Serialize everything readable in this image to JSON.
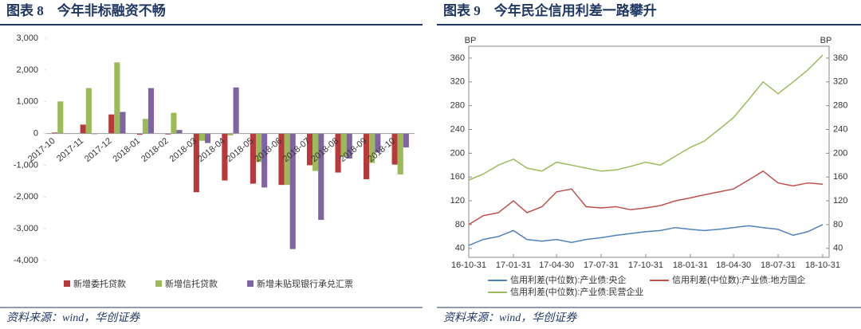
{
  "chart_data": [
    {
      "type": "bar",
      "title": "图表 8　今年非标融资不畅",
      "source": "资料来源：wind，华创证券",
      "categories": [
        "2017-10",
        "2017-11",
        "2017-12",
        "2018-01",
        "2018-02",
        "2018-03",
        "2018-04",
        "2018-05",
        "2018-06",
        "2018-07",
        "2018-08",
        "2018-09",
        "2018-10"
      ],
      "series": [
        {
          "name": "新增委托贷款",
          "color": "#b8393b",
          "values": [
            30,
            280,
            600,
            -40,
            -30,
            -1850,
            -1480,
            -1580,
            -1620,
            -1000,
            -1230,
            -1440,
            -980
          ]
        },
        {
          "name": "新增信托贷款",
          "color": "#9bbb59",
          "values": [
            1010,
            1430,
            2240,
            460,
            650,
            -230,
            -60,
            -900,
            -1620,
            -1180,
            -730,
            -930,
            -1290
          ]
        },
        {
          "name": "新增未贴现银行承兑汇票",
          "color": "#8064a2",
          "values": [
            -10,
            -20,
            680,
            1430,
            110,
            -300,
            1450,
            -1700,
            -3640,
            -2720,
            -790,
            -600,
            -440
          ]
        }
      ],
      "ylim": [
        -4000,
        3000
      ],
      "yticks": [
        {
          "value": -4000,
          "label": "-4,000"
        },
        {
          "value": -3000,
          "label": "-3,000"
        },
        {
          "value": -2000,
          "label": "-2,000"
        },
        {
          "value": -1000,
          "label": "-1,000"
        },
        0,
        {
          "value": 1000,
          "label": "1,000"
        },
        {
          "value": 2000,
          "label": "2,000"
        },
        {
          "value": 3000,
          "label": "3,000"
        }
      ],
      "legend": "bottom"
    },
    {
      "type": "line",
      "title": "图表 9　今年民企信用利差一路攀升",
      "source": "资料来源：wind，华创证券",
      "y_label": "BP",
      "y2_label": "BP",
      "x": [
        "16-10-31",
        "16-11-30",
        "16-12-31",
        "17-01-31",
        "17-02-28",
        "17-03-31",
        "17-04-30",
        "17-05-31",
        "17-06-30",
        "17-07-31",
        "17-08-31",
        "17-09-30",
        "17-10-31",
        "17-11-30",
        "17-12-31",
        "18-01-31",
        "18-02-28",
        "18-03-31",
        "18-04-30",
        "18-05-31",
        "18-06-30",
        "18-07-31",
        "18-08-31",
        "18-09-30",
        "18-10-31"
      ],
      "xlim": [
        "16-10-31",
        "18-10-31"
      ],
      "xticks": [
        "16-10-31",
        "17-01-31",
        "17-04-30",
        "17-07-31",
        "17-10-31",
        "18-01-31",
        "18-04-30",
        "18-07-31",
        "18-10-31"
      ],
      "series": [
        {
          "name": "信用利差(中位数):产业债:央企",
          "color": "#4f81bd",
          "values": [
            45,
            55,
            60,
            70,
            55,
            52,
            55,
            50,
            55,
            58,
            62,
            65,
            68,
            70,
            75,
            72,
            70,
            72,
            75,
            78,
            75,
            72,
            62,
            68,
            80
          ]
        },
        {
          "name": "信用利差(中位数):产业债:地方国企",
          "color": "#c0504d",
          "values": [
            80,
            95,
            100,
            120,
            100,
            110,
            135,
            140,
            110,
            108,
            110,
            105,
            108,
            112,
            120,
            125,
            130,
            135,
            140,
            155,
            170,
            150,
            145,
            150,
            148
          ]
        },
        {
          "name": "信用利差(中位数):产业债:民营企业",
          "color": "#9bbb59",
          "values": [
            155,
            165,
            180,
            190,
            175,
            170,
            185,
            180,
            175,
            170,
            172,
            178,
            185,
            180,
            195,
            210,
            220,
            240,
            260,
            290,
            320,
            300,
            320,
            340,
            365
          ]
        }
      ],
      "ylim": [
        25,
        380
      ],
      "yticks": [
        40,
        80,
        120,
        160,
        200,
        240,
        280,
        320,
        360
      ],
      "y2lim": [
        25,
        380
      ],
      "y2ticks": [
        40,
        80,
        120,
        160,
        200,
        240,
        280,
        320,
        360
      ],
      "legend": "bottom"
    }
  ]
}
